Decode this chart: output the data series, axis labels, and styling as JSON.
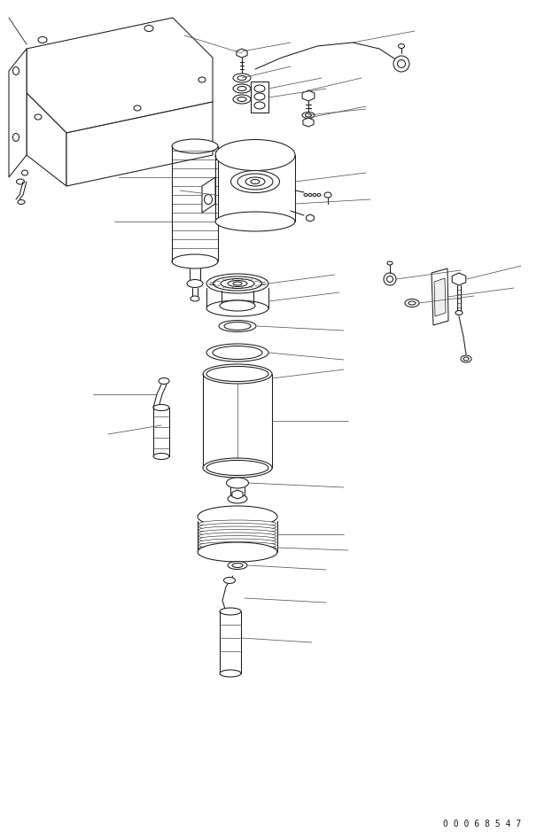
{
  "bg_color": "#ffffff",
  "line_color": "#1a1a1a",
  "text_color": "#1a1a1a",
  "part_number": "0 0 0 6 8 5 4 7",
  "figsize": [
    6.32,
    9.48
  ],
  "dpi": 100
}
